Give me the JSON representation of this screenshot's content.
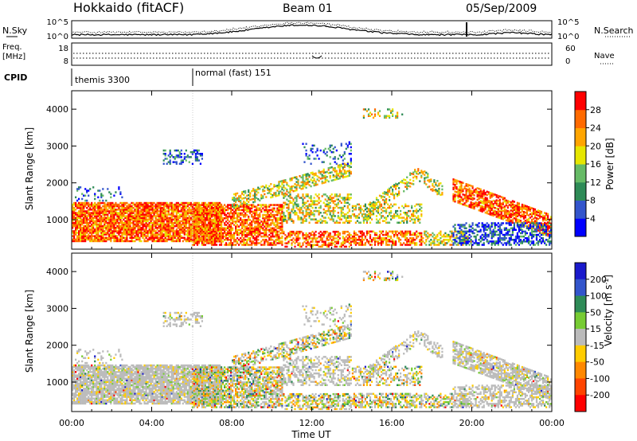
{
  "header": {
    "title": "Hokkaido (fitACF)",
    "beam": "Beam 01",
    "date": "05/Sep/2009"
  },
  "panels": {
    "noise_label": "N.Sky",
    "noise_left_ticks": [
      "10^5",
      "10^0"
    ],
    "noise_right_ticks": [
      "10^5",
      "10^0"
    ],
    "noise_right_label": "N.Search",
    "freq_label": "Freq.",
    "freq_unit": "[MHz]",
    "freq_ticks": [
      "18",
      "8"
    ],
    "nave_ticks": [
      "60",
      "0"
    ],
    "nave_label": "Nave",
    "cpid_label": "CPID",
    "cpid_modes": [
      "themis 3300",
      "normal (fast) 151"
    ]
  },
  "chart_data": [
    {
      "type": "heatmap",
      "title": "",
      "ylabel": "Slant Range [km]",
      "xlabel": "",
      "x_ticks": [
        "00:00",
        "04:00",
        "08:00",
        "12:00",
        "16:00",
        "20:00",
        "00:00"
      ],
      "y_ticks": [
        1000,
        2000,
        3000,
        4000
      ],
      "ylim": [
        200,
        4500
      ],
      "colorbar": {
        "label": "Power [dB]",
        "ticks": [
          "4",
          "8",
          "12",
          "16",
          "20",
          "24",
          "28"
        ],
        "colors": [
          "#0000ff",
          "#3355cc",
          "#2e8b57",
          "#66bb66",
          "#e6e600",
          "#ffa500",
          "#ff6a00",
          "#ff0000"
        ]
      }
    },
    {
      "type": "heatmap",
      "title": "",
      "ylabel": "Slant Range [km]",
      "xlabel": "Time UT",
      "x_ticks": [
        "00:00",
        "04:00",
        "08:00",
        "12:00",
        "16:00",
        "20:00",
        "00:00"
      ],
      "y_ticks": [
        1000,
        2000,
        3000,
        4000
      ],
      "ylim": [
        200,
        4500
      ],
      "colorbar": {
        "label": "Velocity [m s^-1]",
        "ticks": [
          "200",
          "100",
          "50",
          "15",
          "-15",
          "-50",
          "-100",
          "-200"
        ],
        "colors": [
          "#1a1acc",
          "#3355cc",
          "#2e8b57",
          "#77cc33",
          "#bbbbbb",
          "#ffcc00",
          "#ff8800",
          "#ff4400",
          "#ff0000"
        ]
      }
    }
  ]
}
